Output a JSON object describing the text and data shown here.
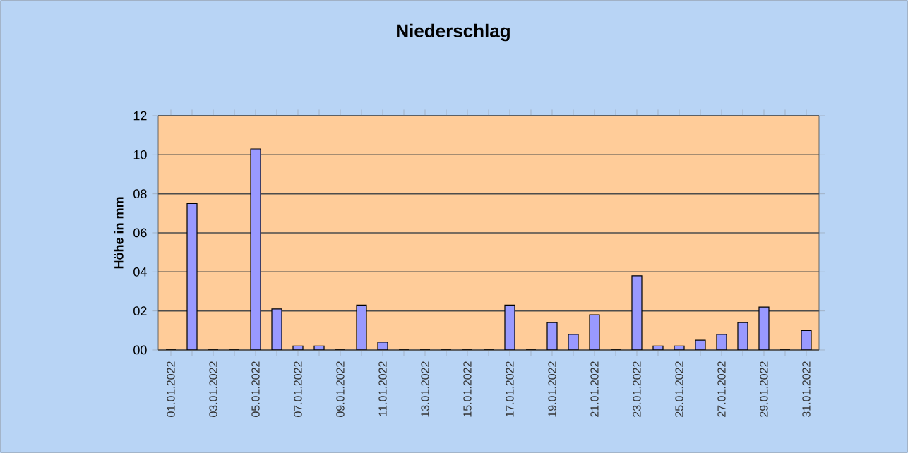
{
  "chart_data": {
    "type": "bar",
    "title": "Niederschlag",
    "ylabel": "Höhe in mm",
    "categories": [
      "01.01.2022",
      null,
      "03.01.2022",
      null,
      "05.01.2022",
      null,
      "07.01.2022",
      null,
      "09.01.2022",
      null,
      "11.01.2022",
      null,
      "13.01.2022",
      null,
      "15.01.2022",
      null,
      "17.01.2022",
      null,
      "19.01.2022",
      null,
      "21.01.2022",
      null,
      "23.01.2022",
      null,
      "25.01.2022",
      null,
      "27.01.2022",
      null,
      "29.01.2022",
      null,
      "31.01.2022"
    ],
    "values": [
      0,
      7.5,
      0,
      0,
      10.3,
      2.1,
      0.2,
      0.2,
      0,
      2.3,
      0.4,
      0,
      0,
      0,
      0,
      0,
      2.3,
      0,
      1.4,
      0.8,
      1.8,
      0,
      3.8,
      0.2,
      0.2,
      0.5,
      0.8,
      1.4,
      2.2,
      0,
      1.0
    ],
    "color": "#9999ff",
    "ylim": [
      0,
      12
    ],
    "yticks": [
      {
        "value": 0,
        "label": "00"
      },
      {
        "value": 2,
        "label": "02"
      },
      {
        "value": 4,
        "label": "04"
      },
      {
        "value": 6,
        "label": "06"
      },
      {
        "value": 8,
        "label": "08"
      },
      {
        "value": 10,
        "label": "10"
      },
      {
        "value": 12,
        "label": "12"
      }
    ],
    "grid": "y"
  }
}
